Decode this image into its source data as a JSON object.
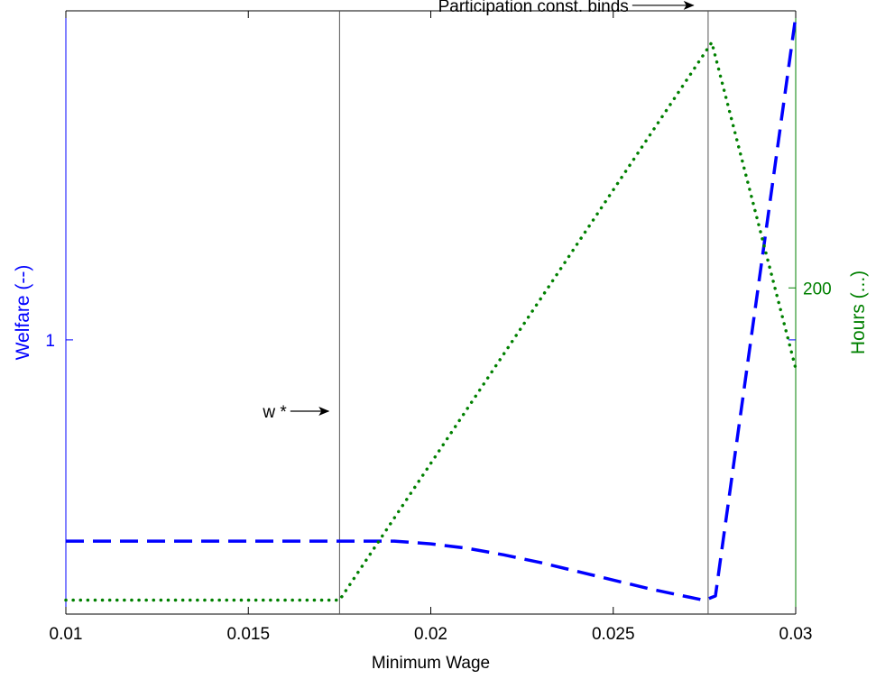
{
  "chart_data": {
    "type": "line",
    "xlabel": "Minimum Wage",
    "ylabel_left": "Welfare (--)",
    "ylabel_right": "Hours  (...)",
    "xlim": [
      0.01,
      0.03
    ],
    "y_left_lim": [
      0.5,
      1.6
    ],
    "y_right_lim": [
      107,
      279
    ],
    "x_ticks": [
      {
        "value": 0.01,
        "label": "0.01"
      },
      {
        "value": 0.015,
        "label": "0.015"
      },
      {
        "value": 0.02,
        "label": "0.02"
      },
      {
        "value": 0.025,
        "label": "0.025"
      },
      {
        "value": 0.03,
        "label": "0.03"
      }
    ],
    "y_left_ticks": [
      {
        "value": 1,
        "label": "1"
      }
    ],
    "y_right_ticks": [
      {
        "value": 200,
        "label": "200"
      }
    ],
    "grid": false,
    "series": [
      {
        "axis": "left",
        "style": "dashed",
        "color": "#0000ff",
        "x": [
          0.01,
          0.0175,
          0.019,
          0.02,
          0.021,
          0.022,
          0.023,
          0.024,
          0.025,
          0.026,
          0.0275,
          0.0278,
          0.03
        ],
        "y": [
          0.633,
          0.633,
          0.633,
          0.628,
          0.62,
          0.608,
          0.594,
          0.578,
          0.562,
          0.546,
          0.525,
          0.533,
          1.59
        ]
      },
      {
        "axis": "right",
        "style": "dotted",
        "color": "#008000",
        "x": [
          0.01,
          0.0175,
          0.0277,
          0.03
        ],
        "y": [
          111,
          111,
          270,
          177
        ]
      }
    ],
    "vertical_lines": [
      {
        "x": 0.0175,
        "color": "#555555"
      },
      {
        "x": 0.0276,
        "color": "#555555"
      }
    ],
    "annotations": [
      {
        "text": "w *",
        "x": 0.0154,
        "y_left": 0.87,
        "arrow_to_x": 0.0172
      },
      {
        "text": "Participation const. binds",
        "x": 0.0202,
        "y_left": 1.61,
        "arrow_to_x": 0.0272
      }
    ]
  }
}
